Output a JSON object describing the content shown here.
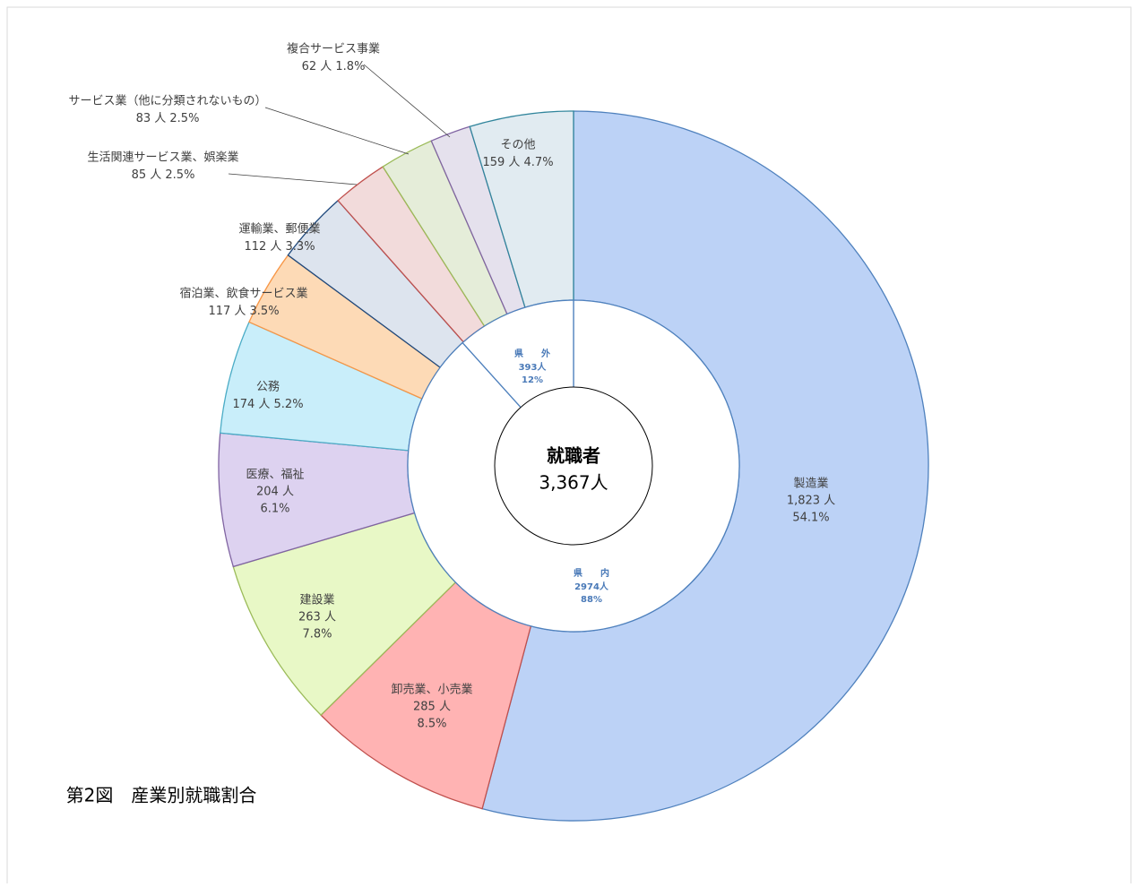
{
  "chart_data": {
    "type": "donut",
    "title": "第2図　産業別就職割合",
    "center_title": "就職者",
    "center_value": "3,367人",
    "categories": [
      "製造業",
      "卸売業、小売業",
      "建設業",
      "医療、福祉",
      "公務",
      "宿泊業、飲食サービス業",
      "運輸業、郵便業",
      "生活関連サービス業、娯楽業",
      "サービス業（他に分類されないもの）",
      "複合サービス事業",
      "その他"
    ],
    "values": [
      1823,
      285,
      263,
      204,
      174,
      117,
      112,
      85,
      83,
      62,
      159
    ],
    "value_labels": [
      "1,823 人",
      "285 人",
      "263 人",
      "204 人",
      "174 人",
      "117 人",
      "112 人",
      "85 人",
      "83 人",
      "62 人",
      "159 人"
    ],
    "percent_labels": [
      "54.1%",
      "8.5%",
      "7.8%",
      "6.1%",
      "5.2%",
      "3.5%",
      "3.3%",
      "2.5%",
      "2.5%",
      "1.8%",
      "4.7%"
    ],
    "colors": [
      "#bcd2f6",
      "#ffb3b3",
      "#e8f8c6",
      "#ddd2f0",
      "#c9eefa",
      "#fddab6",
      "#dde4ee",
      "#f2dbdb",
      "#e5edd9",
      "#e5e1ed",
      "#e1ebf1"
    ],
    "border_colors": [
      "#4f81bd",
      "#c0504d",
      "#9bbb59",
      "#8064a2",
      "#4bacc6",
      "#f79646",
      "#1f497d",
      "#c0504d",
      "#9bbb59",
      "#8064a2",
      "#31859c"
    ],
    "inner": {
      "categories": [
        "県　　内",
        "県　　外"
      ],
      "values": [
        2974,
        393
      ],
      "value_labels": [
        "2974人",
        "393人"
      ],
      "percent_labels": [
        "88%",
        "12%"
      ]
    }
  }
}
